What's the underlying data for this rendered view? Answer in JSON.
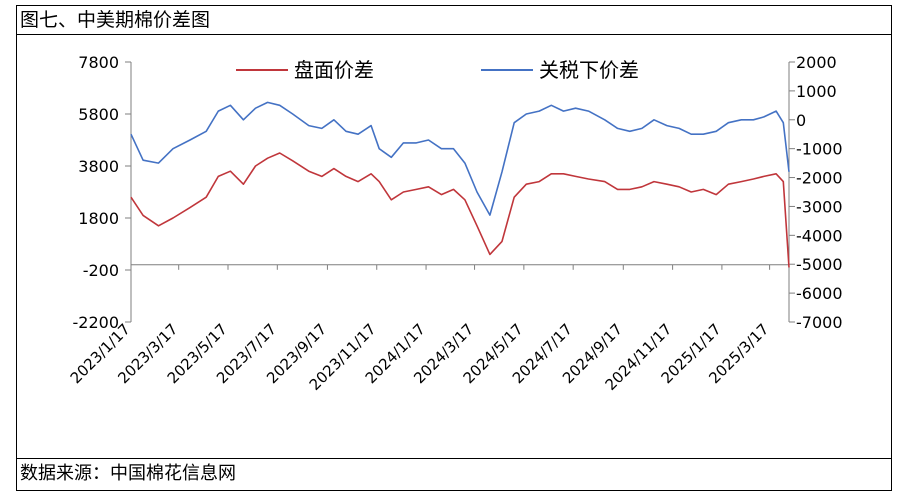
{
  "figure": {
    "title": "图七、中美期棉价差图",
    "source": "数据来源：中国棉花信息网"
  },
  "colors": {
    "spread_futures": "#C0363B",
    "spread_after_tariff": "#4472C4",
    "axis": "#7F7F7F"
  },
  "chart_data": {
    "type": "line",
    "x_tick_labels": [
      "2023/1/17",
      "2023/3/17",
      "2023/5/17",
      "2023/7/17",
      "2023/9/17",
      "2023/11/17",
      "2024/1/17",
      "2024/3/17",
      "2024/5/17",
      "2024/7/17",
      "2024/9/17",
      "2024/11/17",
      "2025/1/17",
      "2025/3/17"
    ],
    "x_range": [
      "2023/1/17",
      "2025/4/10"
    ],
    "y_left": {
      "min": -2200,
      "max": 7800,
      "ticks": [
        7800,
        5800,
        3800,
        1800,
        -200,
        -2200
      ]
    },
    "y_right": {
      "min": -7000,
      "max": 2000,
      "ticks": [
        2000,
        1000,
        0,
        -1000,
        -2000,
        -3000,
        -4000,
        -5000,
        -6000,
        -7000
      ]
    },
    "series": [
      {
        "name": "盘面价差",
        "axis": "left",
        "x": [
          "2023/1/17",
          "2023/2/1",
          "2023/2/20",
          "2023/3/10",
          "2023/3/31",
          "2023/4/20",
          "2023/5/5",
          "2023/5/20",
          "2023/6/5",
          "2023/6/20",
          "2023/7/5",
          "2023/7/20",
          "2023/8/5",
          "2023/8/25",
          "2023/9/10",
          "2023/9/25",
          "2023/10/10",
          "2023/10/25",
          "2023/11/10",
          "2023/11/20",
          "2023/12/5",
          "2023/12/20",
          "2024/1/5",
          "2024/1/20",
          "2024/2/5",
          "2024/2/20",
          "2024/3/5",
          "2024/3/20",
          "2024/4/5",
          "2024/4/20",
          "2024/5/5",
          "2024/5/20",
          "2024/6/5",
          "2024/6/20",
          "2024/7/5",
          "2024/7/20",
          "2024/8/5",
          "2024/8/25",
          "2024/9/10",
          "2024/9/25",
          "2024/10/10",
          "2024/10/25",
          "2024/11/10",
          "2024/11/25",
          "2024/12/10",
          "2024/12/25",
          "2025/1/10",
          "2025/1/25",
          "2025/2/10",
          "2025/2/25",
          "2025/3/10",
          "2025/3/25",
          "2025/4/3",
          "2025/4/10"
        ],
        "y": [
          2600,
          1900,
          1500,
          1800,
          2200,
          2600,
          3400,
          3600,
          3100,
          3800,
          4100,
          4300,
          4000,
          3600,
          3400,
          3700,
          3400,
          3200,
          3500,
          3200,
          2500,
          2800,
          2900,
          3000,
          2700,
          2900,
          2500,
          1500,
          400,
          900,
          2600,
          3100,
          3200,
          3500,
          3500,
          3400,
          3300,
          3200,
          2900,
          2900,
          3000,
          3200,
          3100,
          3000,
          2800,
          2900,
          2700,
          3100,
          3200,
          3300,
          3400,
          3500,
          3200,
          -100
        ]
      },
      {
        "name": "关税下价差",
        "axis": "right",
        "x": [
          "2023/1/17",
          "2023/2/1",
          "2023/2/20",
          "2023/3/10",
          "2023/3/31",
          "2023/4/20",
          "2023/5/5",
          "2023/5/20",
          "2023/6/5",
          "2023/6/20",
          "2023/7/5",
          "2023/7/20",
          "2023/8/5",
          "2023/8/25",
          "2023/9/10",
          "2023/9/25",
          "2023/10/10",
          "2023/10/25",
          "2023/11/10",
          "2023/11/20",
          "2023/12/5",
          "2023/12/20",
          "2024/1/5",
          "2024/1/20",
          "2024/2/5",
          "2024/2/20",
          "2024/3/5",
          "2024/3/20",
          "2024/4/5",
          "2024/4/20",
          "2024/5/5",
          "2024/5/20",
          "2024/6/5",
          "2024/6/20",
          "2024/7/5",
          "2024/7/20",
          "2024/8/5",
          "2024/8/25",
          "2024/9/10",
          "2024/9/25",
          "2024/10/10",
          "2024/10/25",
          "2024/11/10",
          "2024/11/25",
          "2024/12/10",
          "2024/12/25",
          "2025/1/10",
          "2025/1/25",
          "2025/2/10",
          "2025/2/25",
          "2025/3/10",
          "2025/3/25",
          "2025/4/3",
          "2025/4/10"
        ],
        "y": [
          -500,
          -1400,
          -1500,
          -1000,
          -700,
          -400,
          300,
          500,
          0,
          400,
          600,
          500,
          200,
          -200,
          -300,
          0,
          -400,
          -500,
          -200,
          -1000,
          -1300,
          -800,
          -800,
          -700,
          -1000,
          -1000,
          -1500,
          -2500,
          -3300,
          -1800,
          -100,
          200,
          300,
          500,
          300,
          400,
          300,
          0,
          -300,
          -400,
          -300,
          0,
          -200,
          -300,
          -500,
          -500,
          -400,
          -100,
          0,
          0,
          100,
          300,
          -100,
          -1800
        ]
      }
    ]
  }
}
